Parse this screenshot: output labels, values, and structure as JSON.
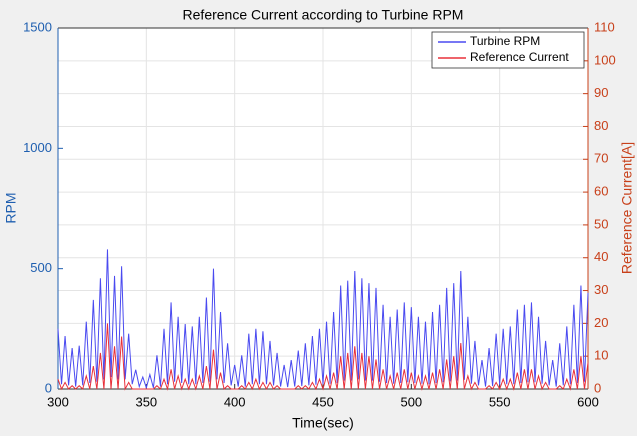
{
  "chart_data": {
    "type": "line",
    "title": "Reference Current according to Turbine RPM",
    "xlabel": "Time(sec)",
    "ylabel": "RPM",
    "y2label": "Reference Current[A]",
    "x": [
      300,
      302,
      304,
      306,
      308,
      310,
      312,
      314,
      316,
      318,
      320,
      322,
      324,
      326,
      328,
      330,
      332,
      334,
      336,
      338,
      340,
      342,
      344,
      346,
      348,
      350,
      352,
      354,
      356,
      358,
      360,
      362,
      364,
      366,
      368,
      370,
      372,
      374,
      376,
      378,
      380,
      382,
      384,
      386,
      388,
      390,
      392,
      394,
      396,
      398,
      400,
      402,
      404,
      406,
      408,
      410,
      412,
      414,
      416,
      418,
      420,
      422,
      424,
      426,
      428,
      430,
      432,
      434,
      436,
      438,
      440,
      442,
      444,
      446,
      448,
      450,
      452,
      454,
      456,
      458,
      460,
      462,
      464,
      466,
      468,
      470,
      472,
      474,
      476,
      478,
      480,
      482,
      484,
      486,
      488,
      490,
      492,
      494,
      496,
      498,
      500,
      502,
      504,
      506,
      508,
      510,
      512,
      514,
      516,
      518,
      520,
      522,
      524,
      526,
      528,
      530,
      532,
      534,
      536,
      538,
      540,
      542,
      544,
      546,
      548,
      550,
      552,
      554,
      556,
      558,
      560,
      562,
      564,
      566,
      568,
      570,
      572,
      574,
      576,
      578,
      580,
      582,
      584,
      586,
      588,
      590,
      592,
      594,
      596,
      598,
      600
    ],
    "series": [
      {
        "name": "Turbine RPM",
        "color": "#4a4af0",
        "values": [
          250,
          20,
          220,
          15,
          170,
          10,
          180,
          15,
          280,
          25,
          370,
          30,
          460,
          40,
          580,
          50,
          470,
          40,
          510,
          40,
          230,
          20,
          80,
          10,
          50,
          5,
          60,
          5,
          140,
          10,
          250,
          20,
          360,
          30,
          300,
          25,
          270,
          20,
          260,
          20,
          300,
          25,
          380,
          30,
          500,
          40,
          320,
          25,
          190,
          15,
          100,
          10,
          140,
          10,
          230,
          20,
          250,
          20,
          240,
          20,
          200,
          15,
          150,
          10,
          100,
          8,
          120,
          10,
          160,
          12,
          190,
          15,
          220,
          18,
          250,
          20,
          280,
          22,
          320,
          25,
          430,
          35,
          450,
          35,
          490,
          40,
          460,
          35,
          440,
          35,
          420,
          30,
          350,
          25,
          300,
          22,
          330,
          25,
          360,
          28,
          340,
          25,
          300,
          22,
          280,
          20,
          320,
          25,
          350,
          28,
          420,
          32,
          440,
          35,
          490,
          38,
          300,
          22,
          200,
          15,
          120,
          10,
          170,
          12,
          230,
          18,
          250,
          20,
          260,
          20,
          330,
          25,
          350,
          28,
          360,
          28,
          300,
          22,
          200,
          15,
          120,
          10,
          190,
          15,
          260,
          20,
          350,
          25,
          430,
          30,
          400
        ]
      },
      {
        "name": "Reference Current",
        "color": "#e8303a",
        "axis": "y2",
        "values": [
          3,
          0,
          2,
          0,
          1,
          0,
          1,
          0,
          4,
          0,
          7,
          0,
          11,
          0,
          20,
          0,
          13,
          0,
          16,
          0,
          2,
          0,
          0,
          0,
          0,
          0,
          0,
          0,
          1,
          0,
          3,
          0,
          6,
          0,
          4,
          0,
          3,
          0,
          3,
          0,
          4,
          0,
          7,
          0,
          12,
          0,
          5,
          0,
          1,
          0,
          0,
          0,
          1,
          0,
          2,
          0,
          3,
          0,
          2,
          0,
          2,
          0,
          1,
          0,
          0,
          0,
          0,
          0,
          1,
          0,
          1,
          0,
          2,
          0,
          3,
          0,
          4,
          0,
          5,
          0,
          10,
          0,
          11,
          0,
          13,
          0,
          11,
          0,
          10,
          0,
          9,
          0,
          6,
          0,
          4,
          0,
          5,
          0,
          6,
          0,
          5,
          0,
          4,
          0,
          4,
          0,
          5,
          0,
          6,
          0,
          9,
          0,
          10,
          0,
          14,
          0,
          4,
          0,
          2,
          0,
          0,
          0,
          1,
          0,
          2,
          0,
          3,
          0,
          3,
          0,
          5,
          0,
          6,
          0,
          6,
          0,
          4,
          0,
          2,
          0,
          0,
          0,
          1,
          0,
          3,
          0,
          6,
          0,
          10,
          0,
          8
        ]
      }
    ],
    "xlim": [
      300,
      600
    ],
    "xticks": [
      300,
      350,
      400,
      450,
      500,
      550,
      600
    ],
    "ylim": [
      0,
      1500
    ],
    "yticks": [
      0,
      500,
      1000,
      1500
    ],
    "ycolor": "#1f5fb0",
    "y2lim": [
      0,
      110
    ],
    "y2ticks": [
      0,
      10,
      20,
      30,
      40,
      50,
      60,
      70,
      80,
      90,
      100,
      110
    ],
    "y2color": "#c8401a",
    "grid": true,
    "legend": "top-right"
  }
}
